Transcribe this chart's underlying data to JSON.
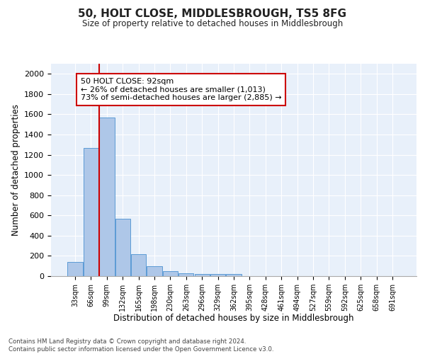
{
  "title": "50, HOLT CLOSE, MIDDLESBROUGH, TS5 8FG",
  "subtitle": "Size of property relative to detached houses in Middlesbrough",
  "xlabel": "Distribution of detached houses by size in Middlesbrough",
  "ylabel": "Number of detached properties",
  "bar_labels": [
    "33sqm",
    "66sqm",
    "99sqm",
    "132sqm",
    "165sqm",
    "198sqm",
    "230sqm",
    "263sqm",
    "296sqm",
    "329sqm",
    "362sqm",
    "395sqm",
    "428sqm",
    "461sqm",
    "494sqm",
    "527sqm",
    "559sqm",
    "592sqm",
    "625sqm",
    "658sqm",
    "691sqm"
  ],
  "bar_values": [
    137,
    1270,
    1570,
    570,
    215,
    100,
    50,
    27,
    22,
    20,
    20,
    0,
    0,
    0,
    0,
    0,
    0,
    0,
    0,
    0,
    0
  ],
  "bar_color": "#aec7e8",
  "bar_edge_color": "#5b9bd5",
  "background_color": "#e8f0fa",
  "grid_color": "#ffffff",
  "vline_color": "#cc0000",
  "annotation_text": "50 HOLT CLOSE: 92sqm\n← 26% of detached houses are smaller (1,013)\n73% of semi-detached houses are larger (2,885) →",
  "annotation_box_color": "#ffffff",
  "annotation_box_edge": "#cc0000",
  "footer_text": "Contains HM Land Registry data © Crown copyright and database right 2024.\nContains public sector information licensed under the Open Government Licence v3.0.",
  "ylim": [
    0,
    2100
  ],
  "yticks": [
    0,
    200,
    400,
    600,
    800,
    1000,
    1200,
    1400,
    1600,
    1800,
    2000
  ]
}
